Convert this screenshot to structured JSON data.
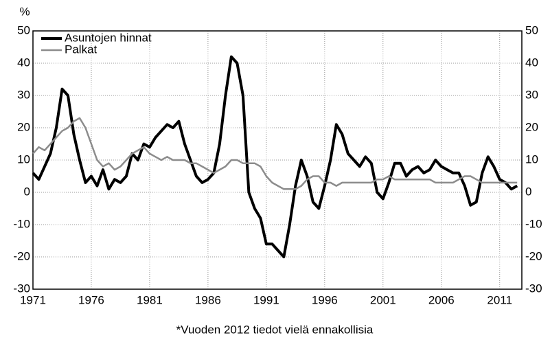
{
  "chart_data": {
    "type": "line",
    "y_unit": "%",
    "note": "*Vuoden 2012 tiedot vielä ennakollisia",
    "x": [
      1971,
      1971.5,
      1972,
      1972.5,
      1973,
      1973.5,
      1974,
      1974.5,
      1975,
      1975.5,
      1976,
      1976.5,
      1977,
      1977.5,
      1978,
      1978.5,
      1979,
      1979.5,
      1980,
      1980.5,
      1981,
      1981.5,
      1982,
      1982.5,
      1983,
      1983.5,
      1984,
      1984.5,
      1985,
      1985.5,
      1986,
      1986.5,
      1987,
      1987.5,
      1988,
      1988.5,
      1989,
      1989.5,
      1990,
      1990.5,
      1991,
      1991.5,
      1992,
      1992.5,
      1993,
      1993.5,
      1994,
      1994.5,
      1995,
      1995.5,
      1996,
      1996.5,
      1997,
      1997.5,
      1998,
      1998.5,
      1999,
      1999.5,
      2000,
      2000.5,
      2001,
      2001.5,
      2002,
      2002.5,
      2003,
      2003.5,
      2004,
      2004.5,
      2005,
      2005.5,
      2006,
      2006.5,
      2007,
      2007.5,
      2008,
      2008.5,
      2009,
      2009.5,
      2010,
      2010.5,
      2011,
      2011.5,
      2012,
      2012.5
    ],
    "series": [
      {
        "name": "Asuntojen hinnat",
        "color": "#000000",
        "values": [
          6,
          4,
          8,
          12,
          20,
          32,
          30,
          18,
          10,
          3,
          5,
          2,
          7,
          1,
          4,
          3,
          5,
          12,
          10,
          15,
          14,
          17,
          19,
          21,
          20,
          22,
          15,
          10,
          5,
          3,
          4,
          6,
          15,
          30,
          42,
          40,
          30,
          0,
          -5,
          -8,
          -16,
          -16,
          -18,
          -20,
          -10,
          2,
          10,
          5,
          -3,
          -5,
          2,
          10,
          21,
          18,
          12,
          10,
          8,
          11,
          9,
          0,
          -2,
          3,
          9,
          9,
          5,
          7,
          8,
          6,
          7,
          10,
          8,
          7,
          6,
          6,
          2,
          -4,
          -3,
          6,
          11,
          8,
          4,
          3,
          1,
          2
        ]
      },
      {
        "name": "Palkat",
        "color": "#8c8c8c",
        "values": [
          12,
          14,
          13,
          15,
          17,
          19,
          20,
          22,
          23,
          20,
          15,
          10,
          8,
          9,
          7,
          8,
          10,
          12,
          13,
          14,
          12,
          11,
          10,
          11,
          10,
          10,
          10,
          9,
          9,
          8,
          7,
          6,
          7,
          8,
          10,
          10,
          9,
          9,
          9,
          8,
          5,
          3,
          2,
          1,
          1,
          1,
          2,
          4,
          5,
          5,
          3,
          3,
          2,
          3,
          3,
          3,
          3,
          3,
          3,
          4,
          4,
          5,
          4,
          4,
          4,
          4,
          4,
          4,
          4,
          3,
          3,
          3,
          3,
          4,
          5,
          5,
          4,
          3,
          3,
          3,
          3,
          3,
          3,
          3
        ]
      }
    ],
    "xlim": [
      1971,
      2012.9
    ],
    "xticks": [
      1971,
      1976,
      1981,
      1986,
      1991,
      1996,
      2001,
      2006,
      2011
    ],
    "ylim": [
      -30,
      50
    ],
    "yticks": [
      -30,
      -20,
      -10,
      0,
      10,
      20,
      30,
      40,
      50
    ],
    "grid": true
  }
}
